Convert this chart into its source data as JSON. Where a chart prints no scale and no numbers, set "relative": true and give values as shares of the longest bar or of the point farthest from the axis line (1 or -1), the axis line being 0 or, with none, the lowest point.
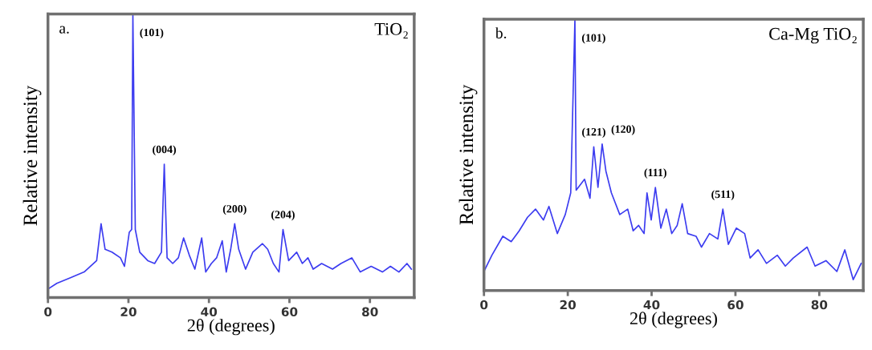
{
  "chart_data": [
    {
      "type": "line",
      "title": "TiO₂",
      "xlabel": "2θ (degrees)",
      "ylabel": "Relative intensity",
      "relative": true,
      "xlim": [
        0,
        91
      ],
      "xticks": [
        0,
        20,
        40,
        60,
        80
      ],
      "grid": false,
      "marker": "none",
      "line_style": "solid",
      "x": [
        0,
        2.2,
        5.6,
        9.0,
        12.1,
        13.2,
        14.2,
        15.9,
        18.0,
        19.0,
        20.2,
        20.8,
        21.1,
        21.7,
        22.8,
        24.8,
        26.5,
        28.2,
        28.9,
        29.6,
        31.0,
        32.4,
        33.7,
        35.1,
        36.5,
        38.2,
        39.2,
        40.6,
        41.9,
        43.3,
        44.3,
        45.4,
        46.4,
        47.4,
        49.1,
        50.9,
        53.3,
        54.6,
        56.0,
        57.4,
        58.4,
        59.8,
        61.8,
        63.2,
        64.6,
        65.9,
        68.0,
        70.7,
        72.8,
        75.5,
        77.6,
        80.3,
        83.1,
        85.1,
        87.2,
        89.2,
        90.3
      ],
      "series": [
        {
          "color": "#3c3cf0",
          "values": [
            0.03,
            0.05,
            0.07,
            0.09,
            0.13,
            0.26,
            0.17,
            0.16,
            0.14,
            0.11,
            0.23,
            0.24,
            1.0,
            0.24,
            0.16,
            0.13,
            0.12,
            0.16,
            0.47,
            0.14,
            0.12,
            0.14,
            0.21,
            0.15,
            0.1,
            0.21,
            0.09,
            0.12,
            0.14,
            0.2,
            0.09,
            0.17,
            0.26,
            0.17,
            0.1,
            0.16,
            0.19,
            0.17,
            0.12,
            0.09,
            0.24,
            0.13,
            0.16,
            0.12,
            0.14,
            0.1,
            0.12,
            0.1,
            0.12,
            0.14,
            0.09,
            0.11,
            0.09,
            0.11,
            0.09,
            0.12,
            0.1
          ]
        }
      ],
      "annotations": [
        "a.",
        {
          "text": "(101)",
          "x": 21.1,
          "y": 1.0
        },
        {
          "text": "(004)",
          "x": 28.9,
          "y": 0.47
        },
        {
          "text": "(200)",
          "x": 46.4,
          "y": 0.26
        },
        {
          "text": "(204)",
          "x": 58.4,
          "y": 0.24
        }
      ]
    },
    {
      "type": "line",
      "title": "Ca-Mg TiO₂",
      "xlabel": "2θ (degrees)",
      "ylabel": "Relative intensity",
      "relative": true,
      "xlim": [
        0,
        90.5
      ],
      "xticks": [
        0,
        20,
        40,
        60,
        80
      ],
      "grid": false,
      "marker": "none",
      "line_style": "solid",
      "x": [
        0,
        1.9,
        4.5,
        6.5,
        8.4,
        10.4,
        12.3,
        14.2,
        15.5,
        17.5,
        19.4,
        20.7,
        21.7,
        22.0,
        24.0,
        25.3,
        26.2,
        27.2,
        28.2,
        29.1,
        30.4,
        32.4,
        34.3,
        35.6,
        36.9,
        38.2,
        38.9,
        39.9,
        40.9,
        42.2,
        43.5,
        44.8,
        46.1,
        47.3,
        48.6,
        50.6,
        51.9,
        53.8,
        55.8,
        57.0,
        58.3,
        60.2,
        62.2,
        63.5,
        65.4,
        67.4,
        70.0,
        71.9,
        73.8,
        77.1,
        79.0,
        81.6,
        84.2,
        86.1,
        88.1,
        90.0
      ],
      "series": [
        {
          "color": "#3c3cf0",
          "values": [
            0.07,
            0.13,
            0.2,
            0.18,
            0.22,
            0.27,
            0.3,
            0.26,
            0.31,
            0.21,
            0.28,
            0.36,
            1.0,
            0.37,
            0.41,
            0.34,
            0.53,
            0.38,
            0.54,
            0.44,
            0.36,
            0.28,
            0.3,
            0.22,
            0.24,
            0.21,
            0.36,
            0.26,
            0.38,
            0.23,
            0.3,
            0.21,
            0.24,
            0.32,
            0.21,
            0.2,
            0.16,
            0.21,
            0.19,
            0.3,
            0.17,
            0.23,
            0.21,
            0.12,
            0.15,
            0.1,
            0.13,
            0.09,
            0.12,
            0.16,
            0.09,
            0.11,
            0.07,
            0.15,
            0.04,
            0.1
          ]
        }
      ],
      "annotations": [
        "b.",
        {
          "text": "(101)",
          "x": 21.7,
          "y": 1.0
        },
        {
          "text": "(121)",
          "x": 26.2,
          "y": 0.53
        },
        {
          "text": "(120)",
          "x": 28.2,
          "y": 0.54
        },
        {
          "text": "(111)",
          "x": 40.9,
          "y": 0.38
        },
        {
          "text": "(511)",
          "x": 57.0,
          "y": 0.3
        }
      ]
    }
  ]
}
